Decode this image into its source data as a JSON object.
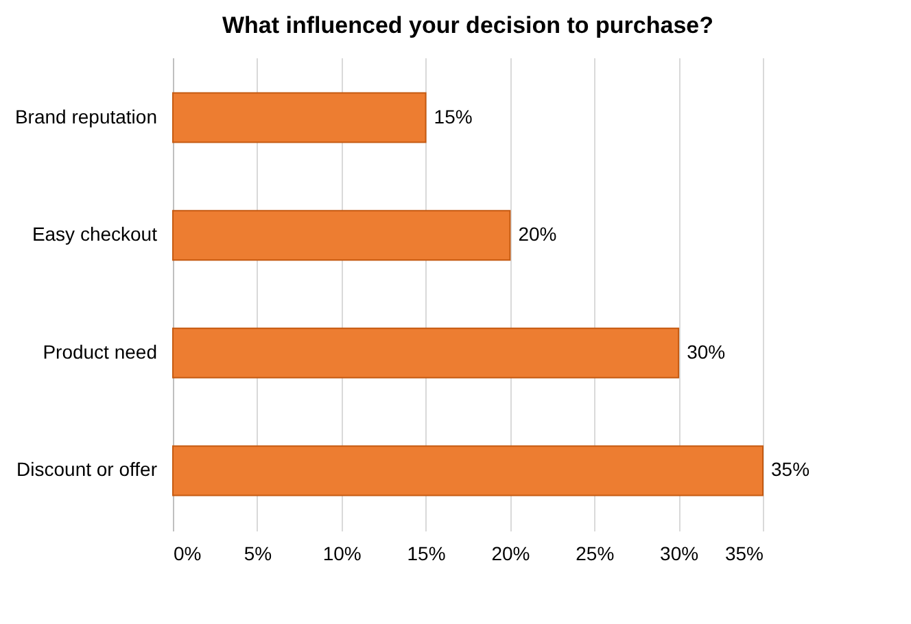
{
  "chart_data": {
    "type": "bar",
    "orientation": "horizontal",
    "title": "What influenced your decision to purchase?",
    "categories": [
      "Brand reputation",
      "Easy checkout",
      "Product need",
      "Discount or offer"
    ],
    "values": [
      15,
      20,
      30,
      35
    ],
    "color": "#ed7d31",
    "value_labels": [
      "15%",
      "20%",
      "30%",
      "35%"
    ],
    "xlim": [
      0,
      35
    ],
    "xticks": [
      {
        "value": 0,
        "label": "0%"
      },
      {
        "value": 5,
        "label": "5%"
      },
      {
        "value": 10,
        "label": "10%"
      },
      {
        "value": 15,
        "label": "15%"
      },
      {
        "value": 20,
        "label": "20%"
      },
      {
        "value": 25,
        "label": "25%"
      },
      {
        "value": 30,
        "label": "30%"
      },
      {
        "value": 35,
        "label": "35%"
      }
    ],
    "grid": "x"
  }
}
